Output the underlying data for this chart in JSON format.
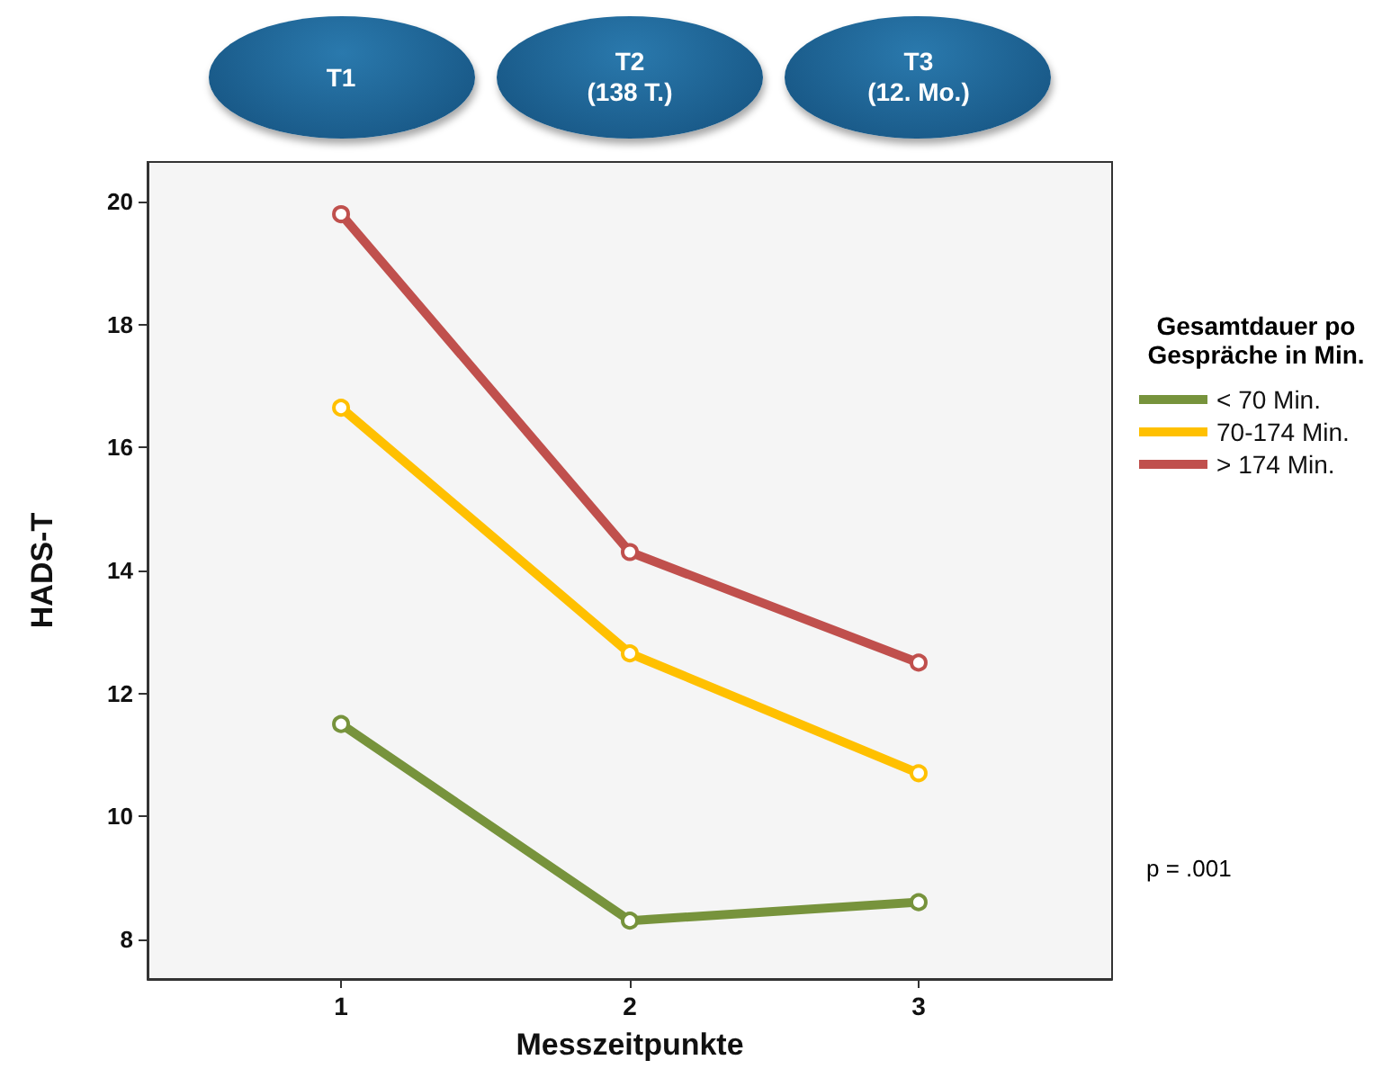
{
  "chart_data": {
    "type": "line",
    "xlabel": "Messzeitpunkte",
    "ylabel": "HADS-T",
    "legend_title": "Gesamtdauer po Gespräche in Min.",
    "x": [
      1,
      2,
      3
    ],
    "series": [
      {
        "name": "< 70 Min.",
        "color": "#77933c",
        "values": [
          11.5,
          8.3,
          8.6
        ]
      },
      {
        "name": "70-174 Min.",
        "color": "#ffc000",
        "values": [
          16.65,
          12.65,
          10.7
        ]
      },
      {
        "name": "> 174 Min.",
        "color": "#c0504d",
        "values": [
          19.8,
          14.3,
          12.5
        ]
      }
    ],
    "xlim": [
      0.33,
      3.67
    ],
    "xticks": [
      1,
      2,
      3
    ],
    "ylim": [
      7.35,
      20.65
    ],
    "yticks": [
      8,
      10,
      12,
      14,
      16,
      18,
      20
    ],
    "annotations": [
      "T1",
      "T2\n(138 T.)",
      "T3\n(12. Mo.)",
      "p = .001"
    ],
    "grid": false,
    "legend": "right",
    "marker": "circle",
    "line_style": "solid"
  }
}
